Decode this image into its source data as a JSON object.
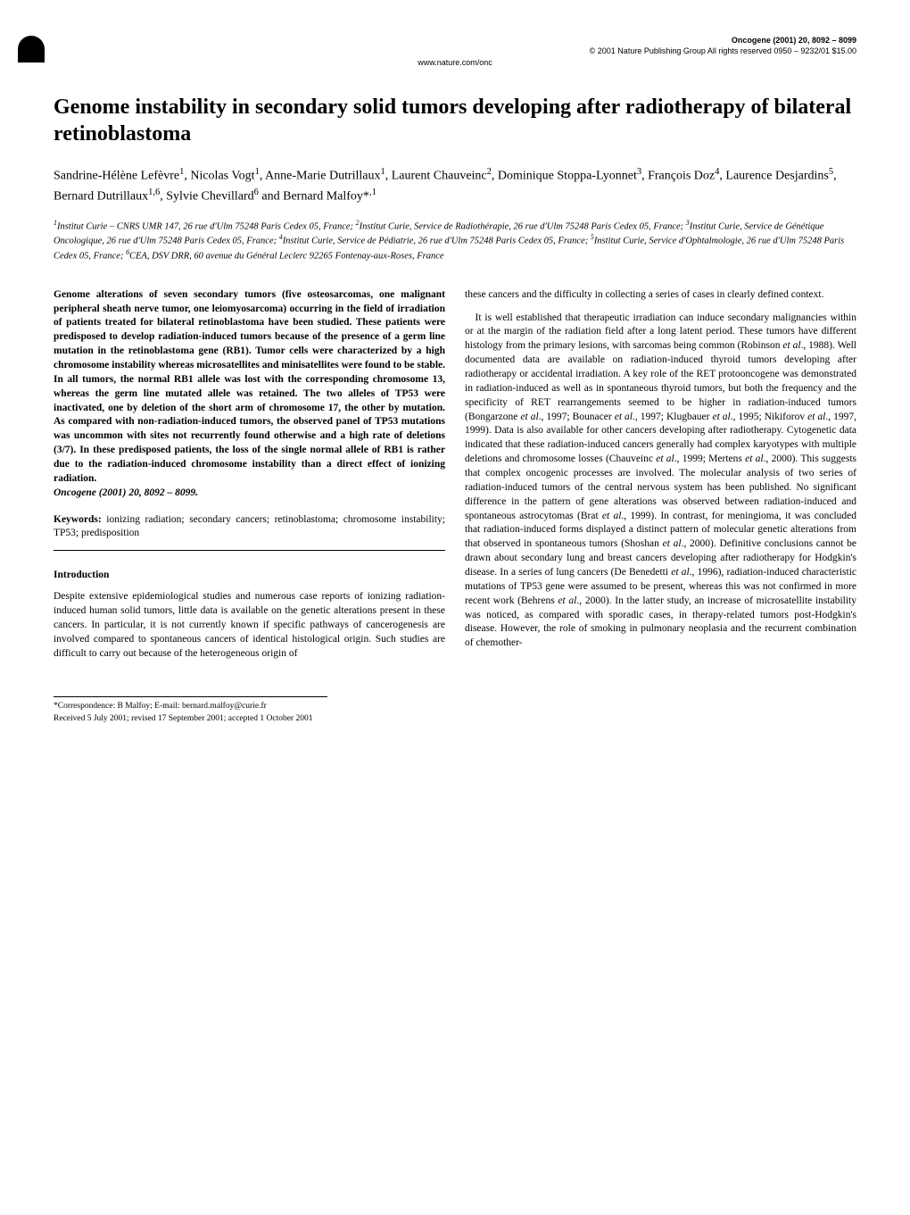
{
  "header": {
    "journal_line": "Oncogene (2001) 20, 8092 – 8099",
    "copyright_line": "© 2001 Nature Publishing Group   All rights reserved 0950 – 9232/01 $15.00",
    "website": "www.nature.com/onc"
  },
  "title": "Genome instability in secondary solid tumors developing after radiotherapy of bilateral retinoblastoma",
  "authors_html": "Sandrine-Hélène Lefèvre<sup>1</sup>, Nicolas Vogt<sup>1</sup>, Anne-Marie Dutrillaux<sup>1</sup>, Laurent Chauveinc<sup>2</sup>, Dominique Stoppa-Lyonnet<sup>3</sup>, François Doz<sup>4</sup>, Laurence Desjardins<sup>5</sup>, Bernard Dutrillaux<sup>1,6</sup>, Sylvie Chevillard<sup>6</sup> and Bernard Malfoy*<sup>,1</sup>",
  "affiliations_html": "<sup>1</sup>Institut Curie – CNRS UMR 147, 26 rue d'Ulm 75248 Paris Cedex 05, France; <sup>2</sup>Institut Curie, Service de Radiothérapie, 26 rue d'Ulm 75248 Paris Cedex 05, France; <sup>3</sup>Institut Curie, Service de Génétique Oncologique, 26 rue d'Ulm 75248 Paris Cedex 05, France; <sup>4</sup>Institut Curie, Service de Pédiatrie, 26 rue d'Ulm 75248 Paris Cedex 05, France; <sup>5</sup>Institut Curie, Service d'Ophtalmologie, 26 rue d'Ulm 75248 Paris Cedex 05, France; <sup>6</sup>CEA, DSV DRR, 60 avenue du Général Leclerc 92265 Fontenay-aux-Roses, France",
  "abstract": "Genome alterations of seven secondary tumors (five osteosarcomas, one malignant peripheral sheath nerve tumor, one leiomyosarcoma) occurring in the field of irradiation of patients treated for bilateral retinoblastoma have been studied. These patients were predisposed to develop radiation-induced tumors because of the presence of a germ line mutation in the retinoblastoma gene (RB1). Tumor cells were characterized by a high chromosome instability whereas microsatellites and minisatellites were found to be stable. In all tumors, the normal RB1 allele was lost with the corresponding chromosome 13, whereas the germ line mutated allele was retained. The two alleles of TP53 were inactivated, one by deletion of the short arm of chromosome 17, the other by mutation. As compared with non-radiation-induced tumors, the observed panel of TP53 mutations was uncommon with sites not recurrently found otherwise and a high rate of deletions (3/7). In these predisposed patients, the loss of the single normal allele of RB1 is rather due to the radiation-induced chromosome instability than a direct effect of ionizing radiation.",
  "abstract_citation": "Oncogene (2001) 20, 8092 – 8099.",
  "keywords_label": "Keywords:",
  "keywords": "ionizing radiation; secondary cancers; retinoblastoma; chromosome instability; TP53; predisposition",
  "section_intro": "Introduction",
  "intro_para1": "Despite extensive epidemiological studies and numerous case reports of ionizing radiation-induced human solid tumors, little data is available on the genetic alterations present in these cancers. In particular, it is not currently known if specific pathways of cancerogenesis are involved compared to spontaneous cancers of identical histological origin. Such studies are difficult to carry out because of the heterogeneous origin of",
  "right_para1": "these cancers and the difficulty in collecting a series of cases in clearly defined context.",
  "right_para2_html": "It is well established that therapeutic irradiation can induce secondary malignancies within or at the margin of the radiation field after a long latent period. These tumors have different histology from the primary lesions, with sarcomas being common (Robinson <i>et al</i>., 1988). Well documented data are available on radiation-induced thyroid tumors developing after radiotherapy or accidental irradiation. A key role of the RET protooncogene was demonstrated in radiation-induced as well as in spontaneous thyroid tumors, but both the frequency and the specificity of RET rearrangements seemed to be higher in radiation-induced tumors (Bongarzone <i>et al</i>., 1997; Bounacer <i>et al</i>., 1997; Klugbauer <i>et al</i>., 1995; Nikiforov <i>et al</i>., 1997, 1999). Data is also available for other cancers developing after radiotherapy. Cytogenetic data indicated that these radiation-induced cancers generally had complex karyotypes with multiple deletions and chromosome losses (Chauveinc <i>et al</i>., 1999; Mertens <i>et al</i>., 2000). This suggests that complex oncogenic processes are involved. The molecular analysis of two series of radiation-induced tumors of the central nervous system has been published. No significant difference in the pattern of gene alterations was observed between radiation-induced and spontaneous astrocytomas (Brat <i>et al</i>., 1999). In contrast, for meningioma, it was concluded that radiation-induced forms displayed a distinct pattern of molecular genetic alterations from that observed in spontaneous tumors (Shoshan <i>et al</i>., 2000). Definitive conclusions cannot be drawn about secondary lung and breast cancers developing after radiotherapy for Hodgkin's disease. In a series of lung cancers (De Benedetti <i>et al</i>., 1996), radiation-induced characteristic mutations of TP53 gene were assumed to be present, whereas this was not confirmed in more recent work (Behrens <i>et al</i>., 2000). In the latter study, an increase of microsatellite instability was noticed, as compared with sporadic cases, in therapy-related tumors post-Hodgkin's disease. However, the role of smoking in pulmonary neoplasia and the recurrent combination of chemother-",
  "correspondence": "*Correspondence: B Malfoy; E-mail: bernard.malfoy@curie.fr",
  "received": "Received 5 July 2001; revised 17 September 2001; accepted 1 October 2001"
}
